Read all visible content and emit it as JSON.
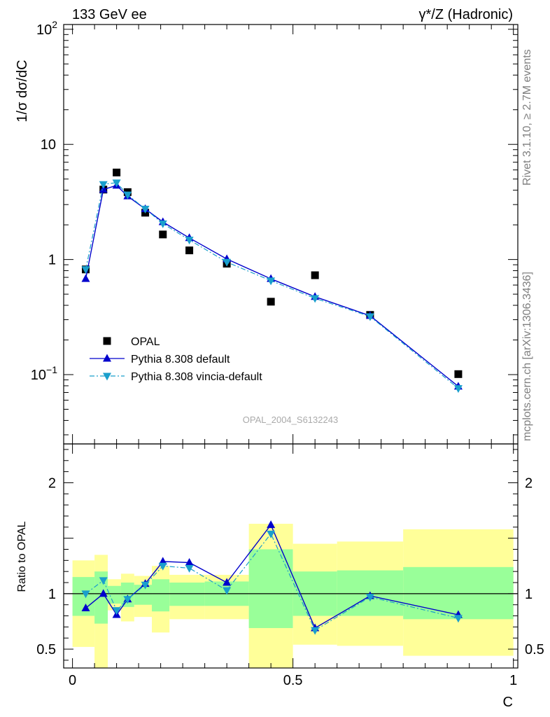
{
  "header": {
    "left": "133 GeV ee",
    "right": "γ*/Z (Hadronic)"
  },
  "side_labels": {
    "rivet": "Rivet 3.1.10, ≥ 2.7M events",
    "mcplots": "mcplots.cern.ch [arXiv:1306.3436]"
  },
  "watermark": "OPAL_2004_S6132243",
  "colors": {
    "data": "#000000",
    "pythia_default": "#0000cc",
    "vincia": "#1a9fcc",
    "band_inner": "#99ff99",
    "band_outer": "#ffff99"
  },
  "chart_data": [
    {
      "type": "scatter",
      "panel": "main",
      "ylabel": "1/σ dσ/dC",
      "yscale": "log",
      "ylim": [
        0.025,
        110
      ],
      "xlim": [
        -0.02,
        1.01
      ],
      "yticks": [
        {
          "v": 0.1,
          "base": "10",
          "exp": "−1"
        },
        {
          "v": 1,
          "label": "1"
        },
        {
          "v": 10,
          "label": "10"
        },
        {
          "v": 100,
          "base": "10",
          "exp": "2"
        }
      ],
      "legend_position": "bottom-left",
      "legend": [
        "OPAL",
        "Pythia 8.308 default",
        "Pythia 8.308 vincia-default"
      ],
      "series": [
        {
          "name": "OPAL",
          "marker": "square",
          "x": [
            0.03,
            0.07,
            0.1,
            0.125,
            0.165,
            0.205,
            0.265,
            0.35,
            0.45,
            0.55,
            0.675,
            0.875
          ],
          "y": [
            0.82,
            4.05,
            5.7,
            3.85,
            2.55,
            1.65,
            1.2,
            0.92,
            0.43,
            0.73,
            0.33,
            0.101
          ]
        },
        {
          "name": "Pythia 8.308 default",
          "marker": "triangle-up",
          "line": "solid",
          "x": [
            0.03,
            0.07,
            0.1,
            0.125,
            0.165,
            0.205,
            0.265,
            0.35,
            0.45,
            0.55,
            0.675,
            0.875
          ],
          "y": [
            0.68,
            4.05,
            4.4,
            3.55,
            2.75,
            2.12,
            1.54,
            1.01,
            0.68,
            0.475,
            0.325,
            0.079
          ]
        },
        {
          "name": "Pythia 8.308 vincia-default",
          "marker": "triangle-down",
          "line": "dashdot",
          "x": [
            0.03,
            0.07,
            0.1,
            0.125,
            0.165,
            0.205,
            0.265,
            0.35,
            0.45,
            0.55,
            0.675,
            0.875
          ],
          "y": [
            0.82,
            4.5,
            4.65,
            3.65,
            2.75,
            2.05,
            1.48,
            0.95,
            0.655,
            0.46,
            0.32,
            0.076
          ]
        }
      ]
    },
    {
      "type": "line",
      "panel": "ratio",
      "ylabel": "Ratio to OPAL",
      "xlabel": "C",
      "ylim": [
        0.33,
        2.35
      ],
      "xlim": [
        -0.02,
        1.01
      ],
      "reference_line": 1,
      "yticks": [
        {
          "v": 0.5,
          "label": "0.5"
        },
        {
          "v": 1,
          "label": "1"
        },
        {
          "v": 2,
          "label": "2"
        }
      ],
      "xticks": [
        {
          "v": 0,
          "label": "0"
        },
        {
          "v": 0.5,
          "label": "0.5"
        },
        {
          "v": 1,
          "label": "1"
        }
      ],
      "bands": [
        {
          "x0": 0.0,
          "x1": 0.05,
          "inner": [
            0.8,
            1.15
          ],
          "outer": [
            0.52,
            1.3
          ]
        },
        {
          "x0": 0.05,
          "x1": 0.08,
          "inner": [
            0.73,
            1.2
          ],
          "outer": [
            0.33,
            1.35
          ]
        },
        {
          "x0": 0.08,
          "x1": 0.11,
          "inner": [
            0.91,
            1.07
          ],
          "outer": [
            0.85,
            1.13
          ]
        },
        {
          "x0": 0.11,
          "x1": 0.14,
          "inner": [
            0.88,
            1.1
          ],
          "outer": [
            0.75,
            1.18
          ]
        },
        {
          "x0": 0.14,
          "x1": 0.18,
          "inner": [
            0.9,
            1.08
          ],
          "outer": [
            0.79,
            1.16
          ]
        },
        {
          "x0": 0.18,
          "x1": 0.22,
          "inner": [
            0.84,
            1.13
          ],
          "outer": [
            0.65,
            1.25
          ]
        },
        {
          "x0": 0.22,
          "x1": 0.3,
          "inner": [
            0.89,
            1.1
          ],
          "outer": [
            0.77,
            1.17
          ]
        },
        {
          "x0": 0.3,
          "x1": 0.4,
          "inner": [
            0.89,
            1.11
          ],
          "outer": [
            0.77,
            1.17
          ]
        },
        {
          "x0": 0.4,
          "x1": 0.5,
          "inner": [
            0.69,
            1.4
          ],
          "outer": [
            0.33,
            1.63
          ]
        },
        {
          "x0": 0.5,
          "x1": 0.6,
          "inner": [
            0.8,
            1.2
          ],
          "outer": [
            0.54,
            1.45
          ]
        },
        {
          "x0": 0.6,
          "x1": 0.75,
          "inner": [
            0.8,
            1.21
          ],
          "outer": [
            0.53,
            1.47
          ]
        },
        {
          "x0": 0.75,
          "x1": 1.0,
          "inner": [
            0.77,
            1.24
          ],
          "outer": [
            0.44,
            1.58
          ]
        }
      ],
      "series": [
        {
          "name": "Pythia 8.308 default",
          "marker": "triangle-up",
          "line": "solid",
          "x": [
            0.03,
            0.07,
            0.1,
            0.125,
            0.165,
            0.205,
            0.265,
            0.35,
            0.45,
            0.55,
            0.675,
            0.875
          ],
          "y": [
            0.87,
            1.0,
            0.81,
            0.95,
            1.09,
            1.29,
            1.28,
            1.1,
            1.62,
            0.69,
            0.98,
            0.81
          ]
        },
        {
          "name": "Pythia 8.308 vincia-default",
          "marker": "triangle-down",
          "line": "dashdot",
          "x": [
            0.03,
            0.07,
            0.1,
            0.125,
            0.165,
            0.205,
            0.265,
            0.35,
            0.45,
            0.55,
            0.675,
            0.875
          ],
          "y": [
            1.0,
            1.12,
            0.85,
            0.95,
            1.08,
            1.25,
            1.23,
            1.03,
            1.54,
            0.67,
            0.97,
            0.78
          ]
        }
      ]
    }
  ]
}
